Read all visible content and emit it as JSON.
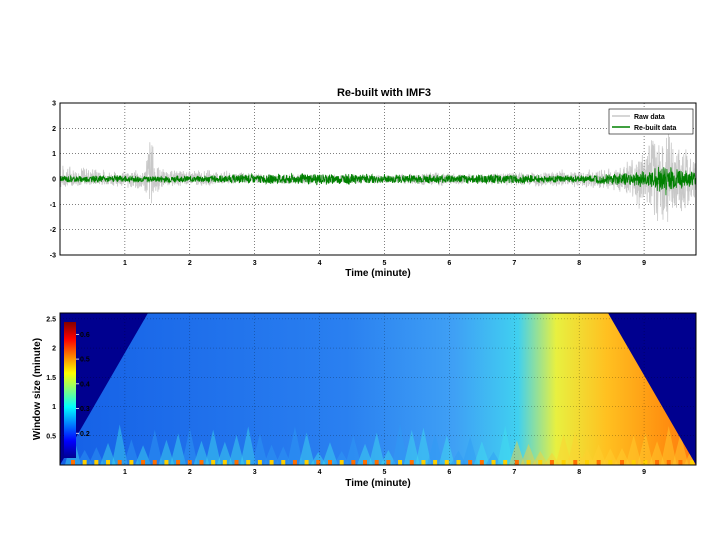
{
  "chart_data": [
    {
      "type": "line",
      "title": "Re-built with IMF3",
      "xlabel": "Time (minute)",
      "ylabel": "",
      "xlim": [
        0,
        9.8
      ],
      "ylim": [
        -3,
        3
      ],
      "xticks": [
        "1",
        "2",
        "3",
        "4",
        "5",
        "6",
        "7",
        "8",
        "9"
      ],
      "yticks": [
        "-3",
        "-2",
        "-1",
        "0",
        "1",
        "2",
        "3"
      ],
      "grid": true,
      "legend_position": "top-right",
      "series": [
        {
          "name": "Raw data",
          "color": "#c8c8c8",
          "approx_envelope": {
            "time": [
              0.0,
              0.3,
              0.9,
              1.3,
              1.4,
              1.45,
              1.6,
              2.2,
              2.8,
              3.4,
              4.0,
              4.6,
              5.2,
              5.8,
              6.4,
              7.0,
              7.6,
              8.2,
              8.6,
              9.0,
              9.1,
              9.3,
              9.5,
              9.8
            ],
            "max": [
              0.6,
              0.6,
              0.3,
              0.4,
              2.6,
              1.0,
              0.4,
              0.4,
              0.3,
              0.2,
              0.2,
              0.2,
              0.2,
              0.3,
              0.2,
              0.3,
              0.4,
              0.4,
              0.5,
              1.2,
              1.8,
              2.2,
              1.5,
              1.0
            ],
            "min": [
              -0.4,
              -0.3,
              -0.3,
              -0.6,
              -1.2,
              -0.8,
              -0.3,
              -0.3,
              -0.2,
              -0.2,
              -0.2,
              -0.2,
              -0.2,
              -0.3,
              -0.2,
              -0.3,
              -0.3,
              -0.4,
              -0.5,
              -1.5,
              -1.8,
              -2.2,
              -1.5,
              -1.0
            ]
          }
        },
        {
          "name": "Re-built data",
          "color": "#008000",
          "approx_envelope": {
            "time": [
              0.0,
              1.0,
              2.0,
              3.0,
              4.0,
              5.0,
              6.0,
              7.0,
              8.0,
              8.8,
              9.1,
              9.3,
              9.5,
              9.8
            ],
            "max": [
              0.15,
              0.15,
              0.15,
              0.2,
              0.25,
              0.2,
              0.2,
              0.2,
              0.15,
              0.3,
              0.4,
              0.7,
              0.5,
              0.3
            ],
            "min": [
              -0.15,
              -0.15,
              -0.15,
              -0.2,
              -0.25,
              -0.2,
              -0.2,
              -0.2,
              -0.15,
              -0.3,
              -0.4,
              -0.7,
              -0.5,
              -0.3
            ]
          }
        }
      ]
    },
    {
      "type": "heatmap",
      "title": "",
      "xlabel": "Time (minute)",
      "ylabel": "Window size (minute)",
      "xlim": [
        0,
        9.8
      ],
      "ylim": [
        0,
        2.6
      ],
      "xticks": [
        "1",
        "2",
        "3",
        "4",
        "5",
        "6",
        "7",
        "8",
        "9"
      ],
      "yticks": [
        "0.5",
        "1",
        "1.5",
        "2",
        "2.5"
      ],
      "colorbar": {
        "range": [
          0.1,
          0.65
        ],
        "ticks": [
          "0.2",
          "0.3",
          "0.4",
          "0.5",
          "0.6"
        ],
        "colormap": "jet"
      },
      "approx_values": {
        "time": [
          0.5,
          1.5,
          2.5,
          3.5,
          4.5,
          5.5,
          6.5,
          7.0,
          7.5,
          8.0,
          8.5,
          9.0,
          9.5
        ],
        "mean_value": [
          0.2,
          0.2,
          0.2,
          0.21,
          0.22,
          0.23,
          0.26,
          0.3,
          0.42,
          0.5,
          0.52,
          0.52,
          0.55
        ]
      }
    }
  ]
}
